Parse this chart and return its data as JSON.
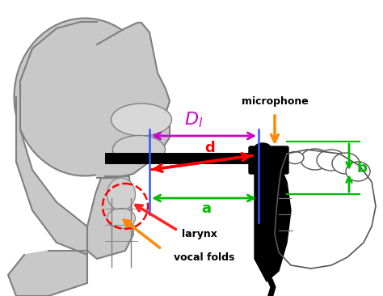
{
  "bg_color": "#ffffff",
  "head_color": "#c8c8c8",
  "head_edge": "#808080",
  "scope_color": "#111111",
  "blue_color": "#3355ff",
  "purple_color": "#cc00cc",
  "red_color": "#ff0000",
  "green_color": "#00bb00",
  "orange_color": "#ff8800",
  "figw": 4.74,
  "figh": 3.66,
  "dpi": 100,
  "xlim": [
    0,
    474
  ],
  "ylim": [
    0,
    366
  ]
}
